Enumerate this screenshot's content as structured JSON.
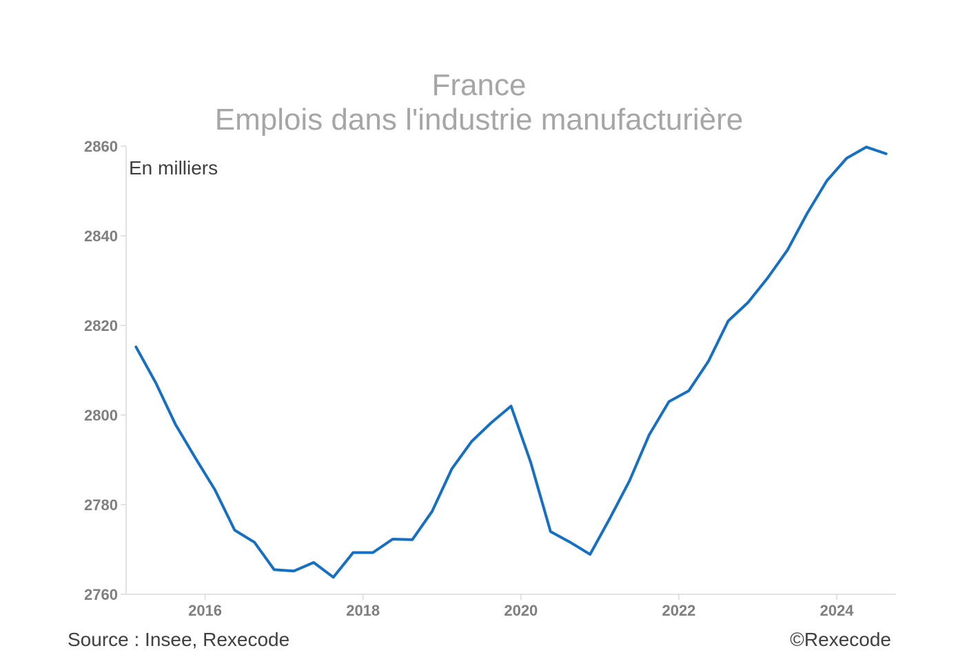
{
  "title_line1": "France",
  "title_line2": "Emplois dans l'industrie manufacturière",
  "unit_note": "En milliers",
  "source": "Source : Insee, Rexecode",
  "copyright": "©Rexecode",
  "colors": {
    "line": "#1570c4",
    "axis": "#d9d9d9",
    "tick_text": "#7f7f7f",
    "title": "#a6a6a6"
  },
  "chart_data": {
    "type": "line",
    "title": "France — Emplois dans l'industrie manufacturière",
    "ylabel": "En milliers",
    "ylim": [
      2760,
      2860
    ],
    "xlim": [
      2015.0,
      2024.75
    ],
    "y_ticks": [
      2760,
      2780,
      2800,
      2820,
      2840,
      2860
    ],
    "x_ticks": [
      2016,
      2018,
      2020,
      2022,
      2024
    ],
    "grid": false,
    "series": [
      {
        "x": [
          2015.125,
          2015.375,
          2015.625,
          2015.875,
          2016.125,
          2016.375,
          2016.625,
          2016.875,
          2017.125,
          2017.375,
          2017.625,
          2017.875,
          2018.125,
          2018.375,
          2018.625,
          2018.875,
          2019.125,
          2019.375,
          2019.625,
          2019.875,
          2020.125,
          2020.375,
          2020.625,
          2020.875,
          2021.125,
          2021.375,
          2021.625,
          2021.875,
          2022.125,
          2022.375,
          2022.625,
          2022.875,
          2023.125,
          2023.375,
          2023.625,
          2023.875,
          2024.125,
          2024.375,
          2024.625
        ],
        "values": [
          2815.2,
          2807.2,
          2797.9,
          2790.5,
          2783.3,
          2774.3,
          2771.6,
          2765.5,
          2765.2,
          2767.1,
          2763.8,
          2769.3,
          2769.3,
          2772.3,
          2772.2,
          2778.5,
          2788.0,
          2794.1,
          2798.3,
          2802.0,
          2789.4,
          2774.0,
          2771.6,
          2768.9,
          2776.9,
          2785.3,
          2795.6,
          2803.0,
          2805.4,
          2812.0,
          2821.0,
          2825.1,
          2830.6,
          2836.8,
          2845.0,
          2852.3,
          2857.3,
          2859.8,
          2858.3
        ]
      }
    ]
  }
}
